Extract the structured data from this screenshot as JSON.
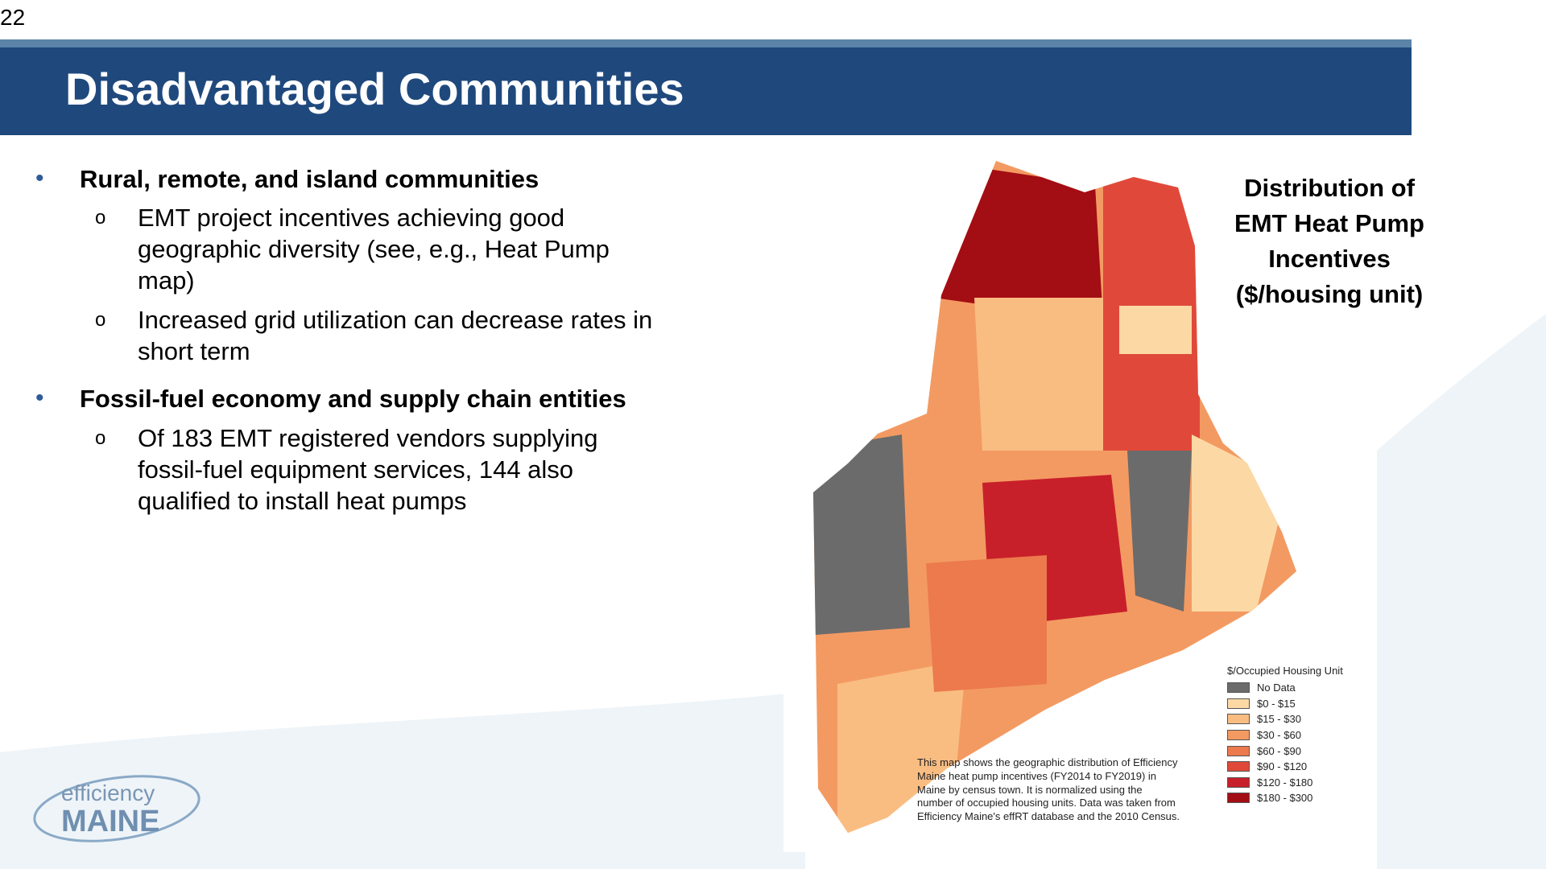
{
  "page_number": "22",
  "header": {
    "title": "Disadvantaged Communities"
  },
  "bullets": [
    {
      "text": "Rural, remote, and island communities",
      "sub": [
        "EMT project incentives achieving good geographic diversity (see, e.g., Heat Pump map)",
        "Increased grid utilization can decrease rates in short term"
      ]
    },
    {
      "text": "Fossil-fuel economy and supply chain entities",
      "sub": [
        "Of 183 EMT registered vendors supplying fossil-fuel equipment services, 144 also qualified to install heat pumps"
      ]
    }
  ],
  "map": {
    "title": [
      "Distribution of",
      "EMT Heat Pump",
      "Incentives",
      "($/housing unit)"
    ],
    "legend": {
      "title": "$/Occupied Housing Unit",
      "items": [
        {
          "label": "No Data",
          "color": "#6b6b6b"
        },
        {
          "label": "$0 - $15",
          "color": "#fcd9a4"
        },
        {
          "label": "$15 - $30",
          "color": "#f9bd82"
        },
        {
          "label": "$30 - $60",
          "color": "#f39a62"
        },
        {
          "label": "$60 - $90",
          "color": "#ec7a4c"
        },
        {
          "label": "$90 - $120",
          "color": "#e0493a"
        },
        {
          "label": "$120 - $180",
          "color": "#c8202a"
        },
        {
          "label": "$180 - $300",
          "color": "#a30d14"
        }
      ]
    },
    "caption": [
      "This map shows the geographic distribution of Efficiency",
      "Maine heat pump incentives (FY2014 to FY2019) in",
      "Maine by census town. It is normalized using the",
      "number of occupied housing units. Data was taken from",
      "Efficiency Maine's effRT database and the 2010 Census."
    ]
  },
  "logo": {
    "top": "efficiency",
    "bottom": "MAINE"
  }
}
